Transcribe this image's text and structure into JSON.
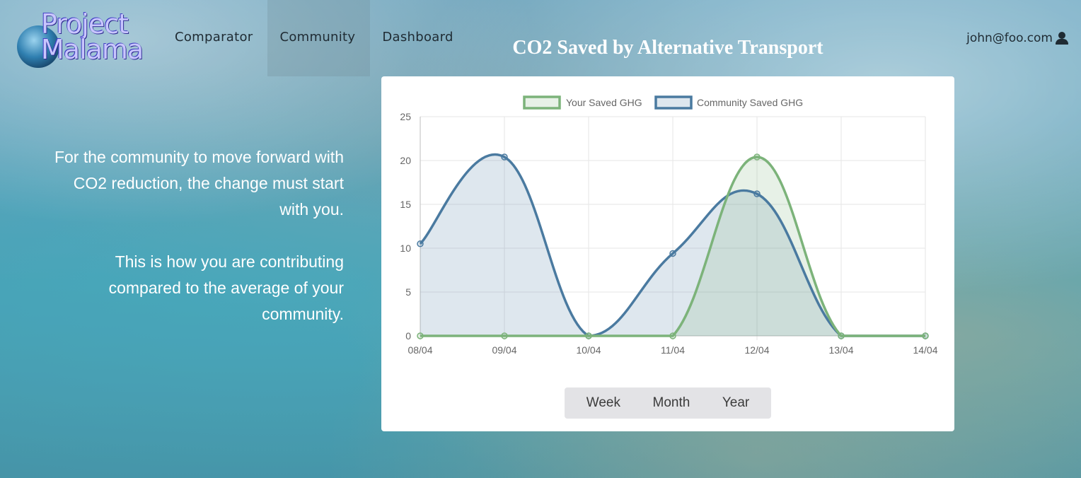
{
  "brand": {
    "line1": "Project",
    "line2": "Malama"
  },
  "nav": {
    "items": [
      {
        "label": "Comparator"
      },
      {
        "label": "Community"
      },
      {
        "label": "Dashboard"
      }
    ]
  },
  "user": {
    "email": "john@foo.com",
    "icon": "user-icon"
  },
  "intro": {
    "paragraph1": "For the community to move forward with CO2 reduction, the change must start with you.",
    "paragraph2": "This is how you are contributing compared to the average of your community."
  },
  "period": {
    "week": "Week",
    "month": "Month",
    "year": "Year"
  },
  "colors": {
    "your": "#7cb37a",
    "community": "#4a7aa0"
  },
  "chart_data": {
    "type": "area",
    "title": "CO2 Saved by Alternative Transport",
    "x": [
      "08/04",
      "09/04",
      "10/04",
      "11/04",
      "12/04",
      "13/04",
      "14/04"
    ],
    "ylim": [
      0,
      25
    ],
    "yticks": [
      "0",
      "5",
      "10",
      "15",
      "20",
      "25"
    ],
    "grid": true,
    "legend_position": "top",
    "series": [
      {
        "name": "Your Saved GHG",
        "values": [
          0,
          0,
          0,
          0,
          20.4,
          0,
          0
        ]
      },
      {
        "name": "Community Saved GHG",
        "values": [
          10.5,
          20.4,
          0,
          9.4,
          16.2,
          0,
          0
        ]
      }
    ]
  }
}
